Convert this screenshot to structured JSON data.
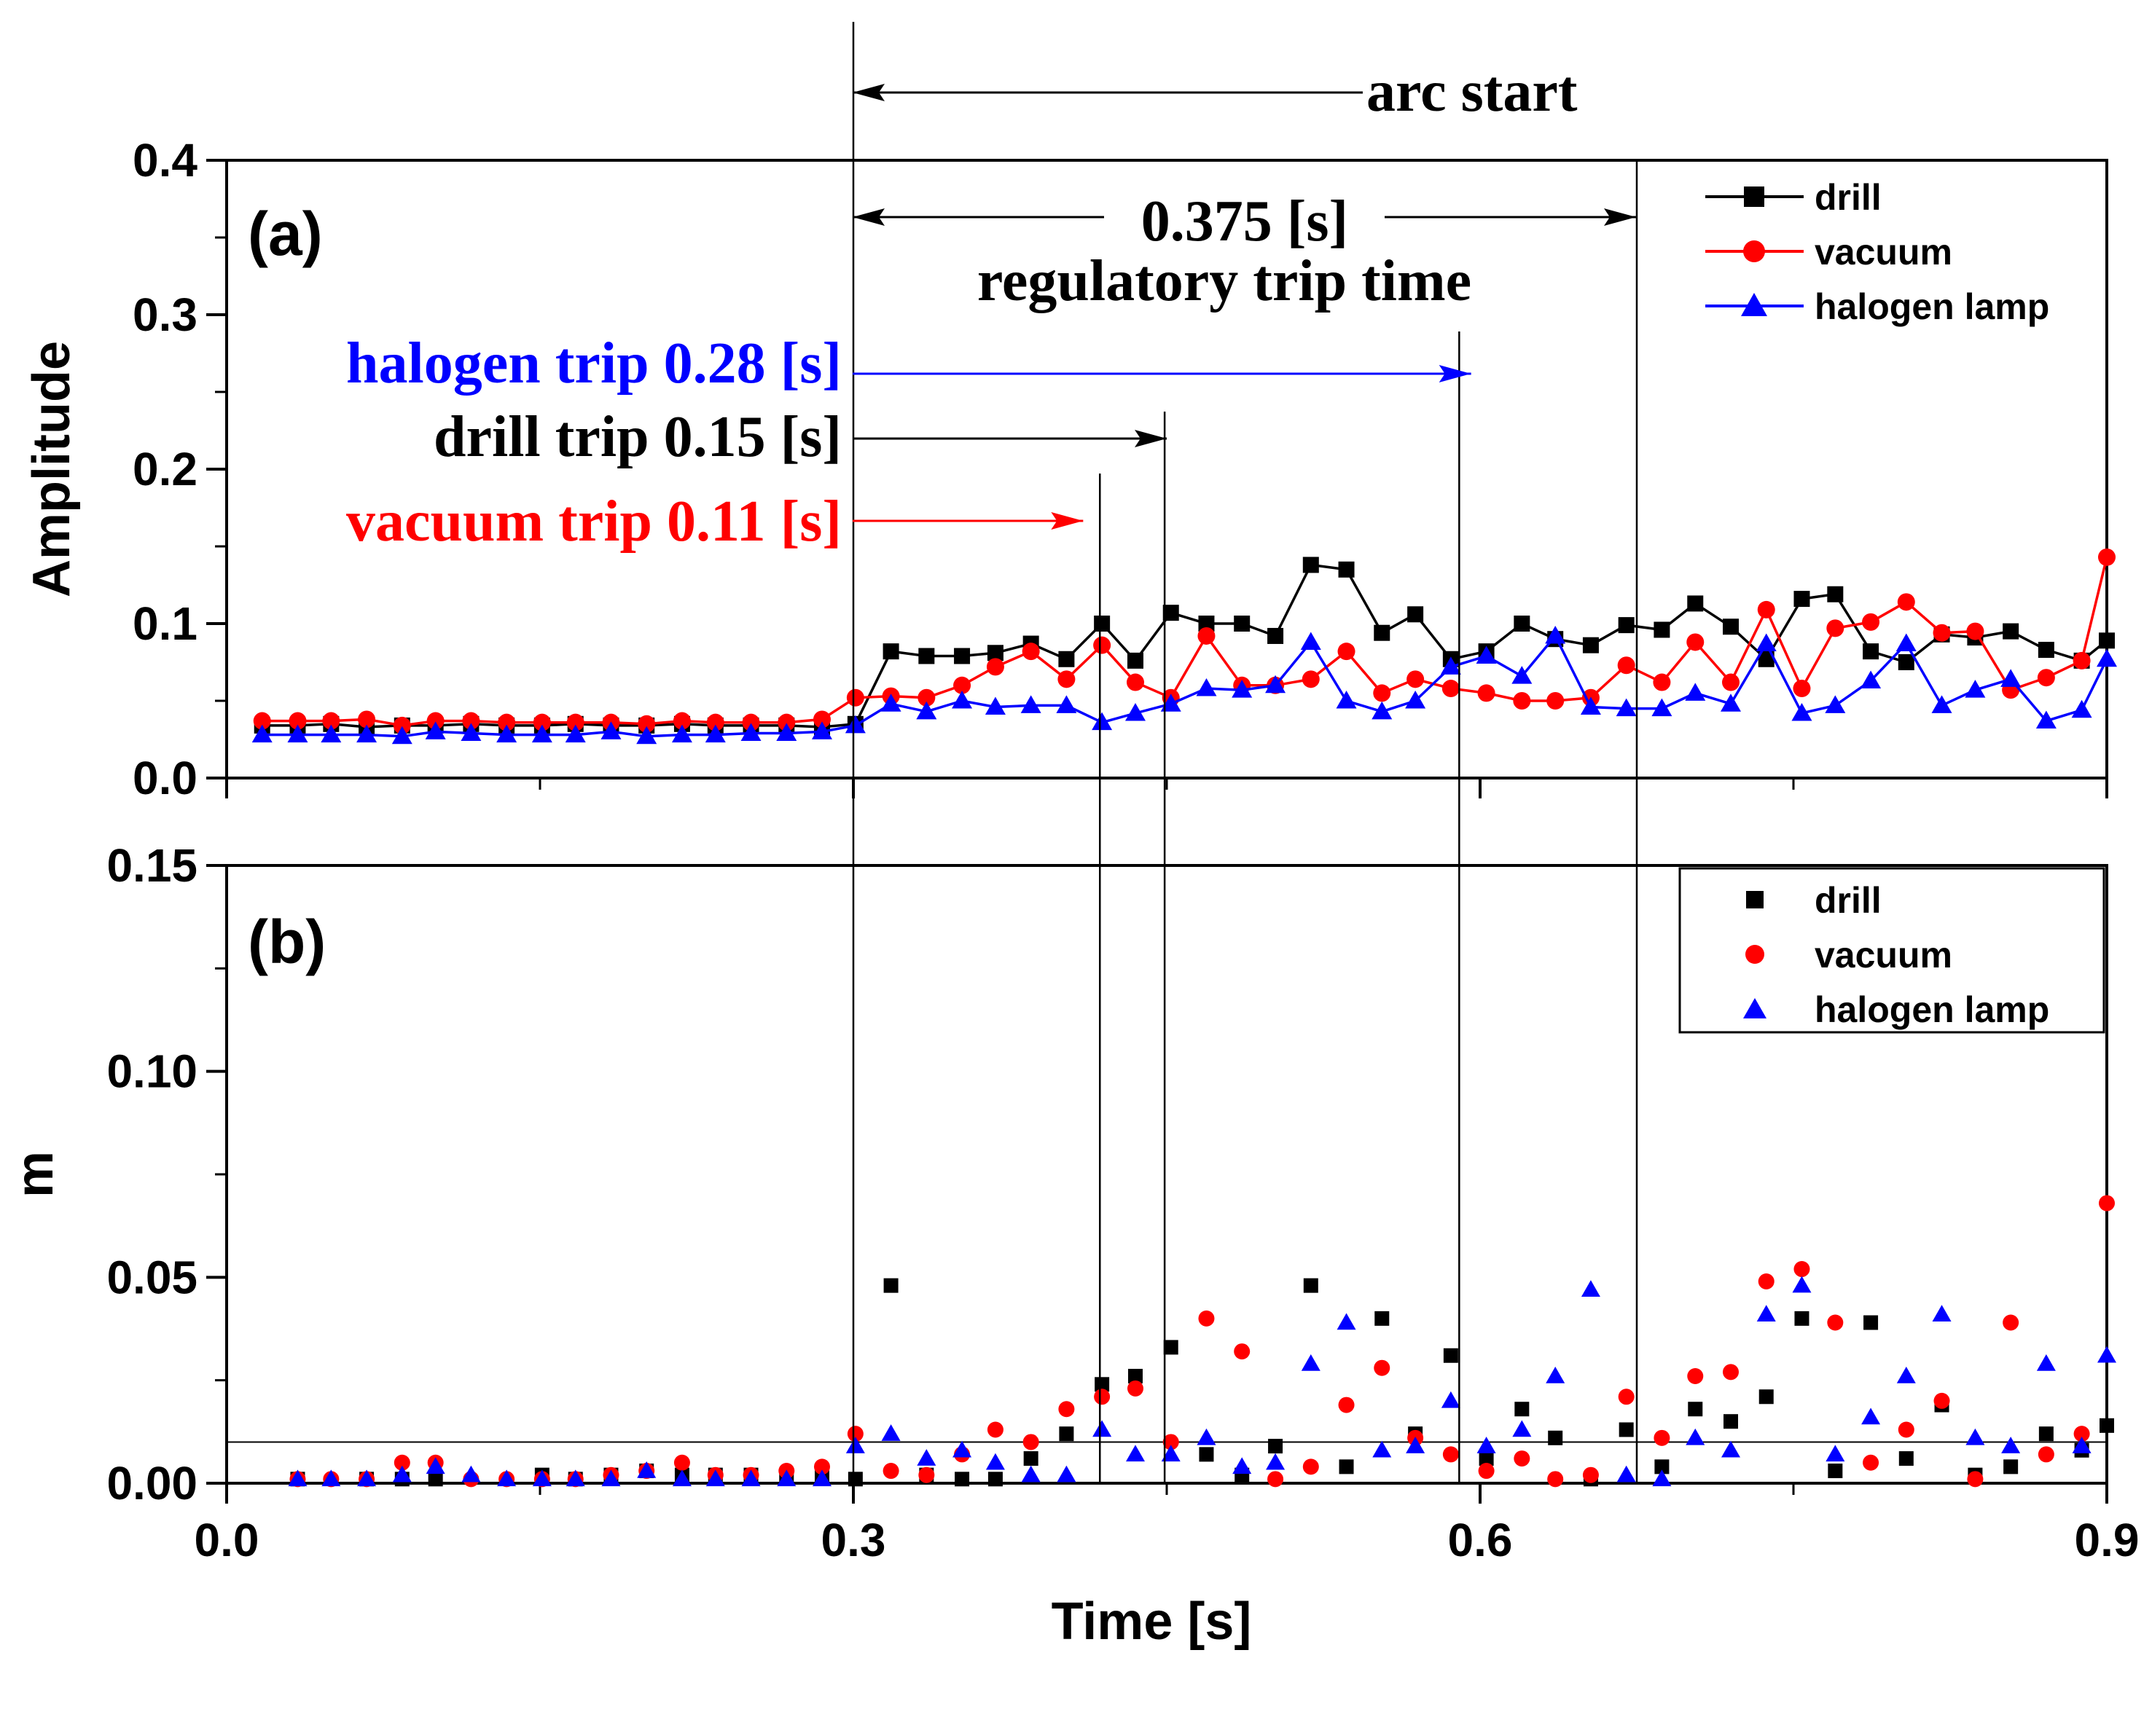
{
  "chart_data": [
    {
      "panel_label": "(a)",
      "type": "line",
      "xlabel": "",
      "ylabel": "Amplitude",
      "xlim": [
        0.0,
        0.9
      ],
      "ylim": [
        0.0,
        0.4
      ],
      "yticks": [
        "0.0",
        "0.1",
        "0.2",
        "0.3",
        "0.4"
      ],
      "legend_position": "top-right",
      "series": [
        {
          "name": "drill",
          "color": "#000000",
          "marker": "square",
          "x": [
            0.017,
            0.034,
            0.05,
            0.067,
            0.084,
            0.1,
            0.117,
            0.134,
            0.151,
            0.167,
            0.184,
            0.201,
            0.218,
            0.234,
            0.251,
            0.268,
            0.285,
            0.301,
            0.318,
            0.335,
            0.352,
            0.368,
            0.385,
            0.402,
            0.419,
            0.435,
            0.452,
            0.469,
            0.486,
            0.502,
            0.519,
            0.536,
            0.553,
            0.569,
            0.586,
            0.603,
            0.62,
            0.636,
            0.653,
            0.67,
            0.687,
            0.703,
            0.72,
            0.737,
            0.754,
            0.77,
            0.787,
            0.804,
            0.821,
            0.837,
            0.854,
            0.871,
            0.888,
            0.9
          ],
          "values": [
            0.034,
            0.034,
            0.035,
            0.033,
            0.034,
            0.034,
            0.035,
            0.034,
            0.034,
            0.035,
            0.034,
            0.034,
            0.035,
            0.034,
            0.034,
            0.034,
            0.033,
            0.035,
            0.082,
            0.079,
            0.079,
            0.081,
            0.087,
            0.077,
            0.1,
            0.076,
            0.107,
            0.1,
            0.1,
            0.092,
            0.138,
            0.135,
            0.094,
            0.106,
            0.077,
            0.082,
            0.1,
            0.09,
            0.086,
            0.099,
            0.096,
            0.113,
            0.098,
            0.077,
            0.116,
            0.119,
            0.082,
            0.075,
            0.093,
            0.091,
            0.095,
            0.083,
            0.076,
            0.089
          ]
        },
        {
          "name": "vacuum",
          "color": "#ff0000",
          "marker": "circle",
          "x": [
            0.017,
            0.034,
            0.05,
            0.067,
            0.084,
            0.1,
            0.117,
            0.134,
            0.151,
            0.167,
            0.184,
            0.201,
            0.218,
            0.234,
            0.251,
            0.268,
            0.285,
            0.301,
            0.318,
            0.335,
            0.352,
            0.368,
            0.385,
            0.402,
            0.419,
            0.435,
            0.452,
            0.469,
            0.486,
            0.502,
            0.519,
            0.536,
            0.553,
            0.569,
            0.586,
            0.603,
            0.62,
            0.636,
            0.653,
            0.67,
            0.687,
            0.703,
            0.72,
            0.737,
            0.754,
            0.77,
            0.787,
            0.804,
            0.821,
            0.837,
            0.854,
            0.871,
            0.888,
            0.9
          ],
          "values": [
            0.037,
            0.037,
            0.037,
            0.038,
            0.034,
            0.037,
            0.037,
            0.036,
            0.036,
            0.036,
            0.036,
            0.035,
            0.037,
            0.036,
            0.036,
            0.036,
            0.038,
            0.052,
            0.053,
            0.052,
            0.06,
            0.072,
            0.082,
            0.064,
            0.086,
            0.062,
            0.052,
            0.092,
            0.06,
            0.06,
            0.064,
            0.082,
            0.055,
            0.064,
            0.058,
            0.055,
            0.05,
            0.05,
            0.052,
            0.073,
            0.062,
            0.088,
            0.062,
            0.109,
            0.058,
            0.097,
            0.101,
            0.114,
            0.094,
            0.095,
            0.057,
            0.065,
            0.076,
            0.143
          ]
        },
        {
          "name": "halogen lamp",
          "color": "#0000ff",
          "marker": "triangle",
          "x": [
            0.017,
            0.034,
            0.05,
            0.067,
            0.084,
            0.1,
            0.117,
            0.134,
            0.151,
            0.167,
            0.184,
            0.201,
            0.218,
            0.234,
            0.251,
            0.268,
            0.285,
            0.301,
            0.318,
            0.335,
            0.352,
            0.368,
            0.385,
            0.402,
            0.419,
            0.435,
            0.452,
            0.469,
            0.486,
            0.502,
            0.519,
            0.536,
            0.553,
            0.569,
            0.586,
            0.603,
            0.62,
            0.636,
            0.653,
            0.67,
            0.687,
            0.703,
            0.72,
            0.737,
            0.754,
            0.77,
            0.787,
            0.804,
            0.821,
            0.837,
            0.854,
            0.871,
            0.888,
            0.9
          ],
          "values": [
            0.028,
            0.028,
            0.028,
            0.028,
            0.027,
            0.03,
            0.029,
            0.028,
            0.028,
            0.028,
            0.03,
            0.027,
            0.028,
            0.028,
            0.029,
            0.029,
            0.03,
            0.034,
            0.048,
            0.043,
            0.05,
            0.046,
            0.047,
            0.047,
            0.036,
            0.042,
            0.048,
            0.058,
            0.057,
            0.06,
            0.088,
            0.05,
            0.043,
            0.05,
            0.072,
            0.079,
            0.066,
            0.092,
            0.046,
            0.045,
            0.045,
            0.055,
            0.048,
            0.087,
            0.042,
            0.047,
            0.063,
            0.087,
            0.047,
            0.057,
            0.064,
            0.037,
            0.044,
            0.077
          ]
        }
      ]
    },
    {
      "panel_label": "(b)",
      "type": "scatter",
      "xlabel": "Time [s]",
      "ylabel": "m",
      "xlim": [
        0.0,
        0.9
      ],
      "ylim": [
        0.0,
        0.15
      ],
      "xticks": [
        "0.0",
        "0.3",
        "0.6",
        "0.9"
      ],
      "yticks": [
        "0.00",
        "0.05",
        "0.10",
        "0.15"
      ],
      "threshold": 0.01,
      "legend_position": "top-right",
      "series": [
        {
          "name": "drill",
          "color": "#000000",
          "marker": "square",
          "x": [
            0.034,
            0.067,
            0.084,
            0.1,
            0.151,
            0.167,
            0.184,
            0.201,
            0.218,
            0.234,
            0.251,
            0.268,
            0.285,
            0.301,
            0.318,
            0.335,
            0.352,
            0.368,
            0.385,
            0.402,
            0.419,
            0.435,
            0.452,
            0.469,
            0.486,
            0.502,
            0.519,
            0.536,
            0.553,
            0.569,
            0.586,
            0.603,
            0.62,
            0.636,
            0.653,
            0.67,
            0.687,
            0.703,
            0.72,
            0.737,
            0.754,
            0.77,
            0.787,
            0.804,
            0.821,
            0.837,
            0.854,
            0.871,
            0.888,
            0.9
          ],
          "values": [
            0.001,
            0.001,
            0.001,
            0.001,
            0.002,
            0.001,
            0.002,
            0.003,
            0.002,
            0.002,
            0.002,
            0.002,
            0.002,
            0.001,
            0.048,
            0.002,
            0.001,
            0.001,
            0.006,
            0.012,
            0.024,
            0.026,
            0.033,
            0.007,
            0.002,
            0.009,
            0.048,
            0.004,
            0.04,
            0.012,
            0.031,
            0.006,
            0.018,
            0.011,
            0.001,
            0.013,
            0.004,
            0.018,
            0.015,
            0.021,
            0.04,
            0.003,
            0.039,
            0.006,
            0.019,
            0.002,
            0.004,
            0.012,
            0.008,
            0.014
          ]
        },
        {
          "name": "vacuum",
          "color": "#ff0000",
          "marker": "circle",
          "x": [
            0.034,
            0.05,
            0.067,
            0.084,
            0.1,
            0.117,
            0.134,
            0.151,
            0.167,
            0.184,
            0.201,
            0.218,
            0.234,
            0.251,
            0.268,
            0.285,
            0.301,
            0.318,
            0.335,
            0.352,
            0.368,
            0.385,
            0.402,
            0.419,
            0.435,
            0.452,
            0.469,
            0.486,
            0.502,
            0.519,
            0.536,
            0.553,
            0.569,
            0.586,
            0.603,
            0.62,
            0.636,
            0.653,
            0.67,
            0.687,
            0.703,
            0.72,
            0.737,
            0.754,
            0.77,
            0.787,
            0.804,
            0.821,
            0.837,
            0.854,
            0.871,
            0.888,
            0.9
          ],
          "values": [
            0.001,
            0.001,
            0.001,
            0.005,
            0.005,
            0.001,
            0.001,
            0.001,
            0.001,
            0.002,
            0.003,
            0.005,
            0.002,
            0.002,
            0.003,
            0.004,
            0.012,
            0.003,
            0.002,
            0.007,
            0.013,
            0.01,
            0.018,
            0.021,
            0.023,
            0.01,
            0.04,
            0.032,
            0.001,
            0.004,
            0.019,
            0.028,
            0.011,
            0.007,
            0.003,
            0.006,
            0.001,
            0.002,
            0.021,
            0.011,
            0.026,
            0.027,
            0.049,
            0.052,
            0.039,
            0.005,
            0.013,
            0.02,
            0.001,
            0.039,
            0.007,
            0.012,
            0.068
          ]
        },
        {
          "name": "halogen lamp",
          "color": "#0000ff",
          "marker": "triangle",
          "x": [
            0.034,
            0.05,
            0.067,
            0.084,
            0.1,
            0.117,
            0.134,
            0.151,
            0.167,
            0.184,
            0.201,
            0.218,
            0.234,
            0.251,
            0.268,
            0.285,
            0.301,
            0.318,
            0.335,
            0.352,
            0.368,
            0.385,
            0.402,
            0.419,
            0.435,
            0.452,
            0.469,
            0.486,
            0.502,
            0.519,
            0.536,
            0.553,
            0.569,
            0.586,
            0.603,
            0.62,
            0.636,
            0.653,
            0.67,
            0.687,
            0.703,
            0.72,
            0.737,
            0.754,
            0.77,
            0.787,
            0.804,
            0.821,
            0.837,
            0.854,
            0.871,
            0.888,
            0.9
          ],
          "values": [
            0.001,
            0.001,
            0.001,
            0.002,
            0.004,
            0.002,
            0.001,
            0.001,
            0.001,
            0.001,
            0.003,
            0.001,
            0.001,
            0.001,
            0.001,
            0.001,
            0.009,
            0.012,
            0.006,
            0.008,
            0.005,
            0.002,
            0.002,
            0.013,
            0.007,
            0.007,
            0.011,
            0.004,
            0.005,
            0.029,
            0.039,
            0.008,
            0.009,
            0.02,
            0.009,
            0.013,
            0.026,
            0.047,
            0.002,
            0.001,
            0.011,
            0.008,
            0.041,
            0.048,
            0.007,
            0.016,
            0.026,
            0.041,
            0.011,
            0.009,
            0.029,
            0.009,
            0.031
          ]
        }
      ]
    }
  ],
  "annotations": {
    "arc_start": {
      "label": "arc start",
      "x": 0.3
    },
    "regulatory": {
      "value_label": "0.375 [s]",
      "caption": "regulatory trip time",
      "x_start": 0.3,
      "x_end": 0.675
    },
    "trips": [
      {
        "label": "halogen trip 0.28 [s]",
        "color": "#0000ff",
        "x_end": 0.58
      },
      {
        "label": "drill trip 0.15 [s]",
        "color": "#000000",
        "x_end": 0.45
      },
      {
        "label": "vacuum trip 0.11 [s]",
        "color": "#ff0000",
        "x_end": 0.41
      }
    ],
    "vertical_markers_x": [
      0.3,
      0.418,
      0.449,
      0.59,
      0.675
    ]
  }
}
